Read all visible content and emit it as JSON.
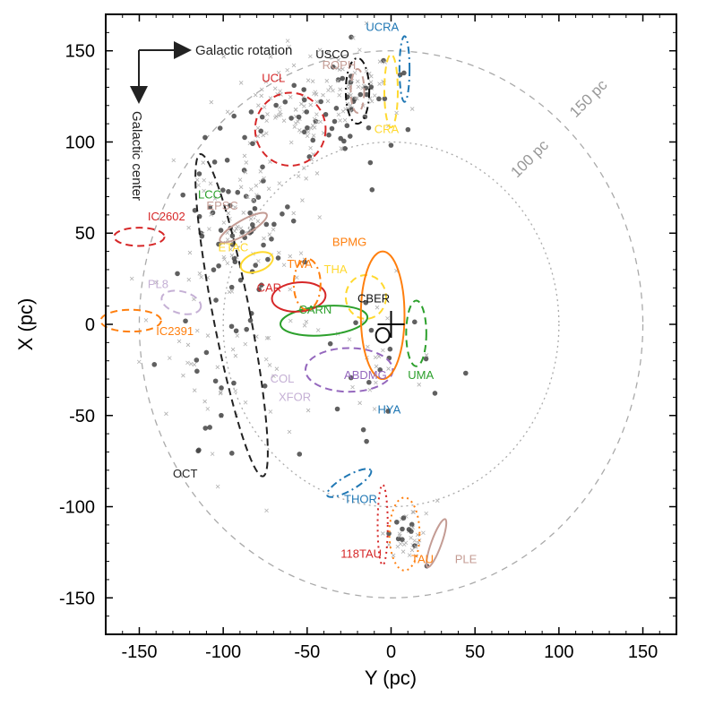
{
  "chart_data": {
    "type": "scatter",
    "title": "",
    "xlabel": "Y (pc)",
    "ylabel": "X (pc)",
    "xlim": [
      -170,
      170
    ],
    "ylim": [
      170,
      -170
    ],
    "xticks": [
      -150,
      -100,
      -50,
      0,
      50,
      100,
      150
    ],
    "yticks": [
      -150,
      -100,
      -50,
      0,
      50,
      100,
      150
    ],
    "xtick_labels": [
      "-150",
      "-100",
      "-50",
      "0",
      "50",
      "100",
      "150"
    ],
    "ytick_labels": [
      "-150",
      "-100",
      "-50",
      "0",
      "50",
      "100",
      "150"
    ],
    "annotations": {
      "rotation": "Galactic rotation",
      "center": "Galactic center"
    },
    "reference_circles": [
      {
        "radius": 100,
        "label": "100 pc",
        "label_pos": [
          75,
          80
        ],
        "style": "dotted",
        "color": "#aaaaaa"
      },
      {
        "radius": 150,
        "label": "150 pc",
        "label_pos": [
          110,
          113
        ],
        "style": "dashed",
        "color": "#aaaaaa"
      }
    ],
    "sun_marker": [
      0,
      0
    ],
    "associations": [
      {
        "name": "118TAU",
        "color": "#d62728",
        "style": "dotted",
        "cx": -5,
        "cy": -110,
        "rx": 3,
        "ry": 22,
        "angle": 0,
        "label_pos": [
          -30,
          -128
        ]
      },
      {
        "name": "TAU",
        "color": "#ff7f0e",
        "style": "dotted",
        "cx": 8,
        "cy": -115,
        "rx": 9,
        "ry": 20,
        "angle": 0,
        "label_pos": [
          12,
          -131
        ]
      },
      {
        "name": "PLE",
        "color": "#c49c94",
        "style": "solid",
        "cx": 27,
        "cy": -120,
        "rx": 3,
        "ry": 14,
        "angle": 20,
        "label_pos": [
          38,
          -131
        ]
      },
      {
        "name": "THOR",
        "color": "#1f77b4",
        "style": "dashdot",
        "cx": -25,
        "cy": -87,
        "rx": 15,
        "ry": 4,
        "angle": -30,
        "label_pos": [
          -28,
          -98
        ]
      },
      {
        "name": "OCT",
        "color": "#222222",
        "style": "dashed",
        "cx": -95,
        "cy": 5,
        "rx": 11,
        "ry": 90,
        "angle": -11,
        "label_pos": [
          -130,
          -84
        ]
      },
      {
        "name": "XFOR",
        "color": "#c5b0d5",
        "style": "dashed",
        "cx": -65,
        "cy": -42,
        "rx": 0,
        "ry": 0,
        "angle": 0,
        "label_pos": [
          -67,
          -42
        ]
      },
      {
        "name": "COL",
        "color": "#c5b0d5",
        "style": "dashed",
        "cx": -70,
        "cy": -32,
        "rx": 0,
        "ry": 0,
        "angle": 0,
        "label_pos": [
          -72,
          -32
        ]
      },
      {
        "name": "ABDMG",
        "color": "#9467bd",
        "style": "dashed",
        "cx": -25,
        "cy": -25,
        "rx": 26,
        "ry": 12,
        "angle": 0,
        "label_pos": [
          -28,
          -30
        ]
      },
      {
        "name": "HYA",
        "color": "#1f77b4",
        "style": "solid",
        "cx": -10,
        "cy": -42,
        "rx": 0,
        "ry": 0,
        "angle": 0,
        "label_pos": [
          -8,
          -49
        ]
      },
      {
        "name": "UMA",
        "color": "#2ca02c",
        "style": "dashed",
        "cx": 15,
        "cy": -5,
        "rx": 6,
        "ry": 18,
        "angle": 0,
        "label_pos": [
          10,
          -30
        ]
      },
      {
        "name": "CBER",
        "color": "#111111",
        "style": "solid",
        "cx": -5,
        "cy": -6,
        "rx": 4,
        "ry": 4,
        "angle": 0,
        "label_pos": [
          -20,
          12
        ]
      },
      {
        "name": "IC2391",
        "color": "#ff7f0e",
        "style": "dashed",
        "cx": -155,
        "cy": 2,
        "rx": 18,
        "ry": 6,
        "angle": 0,
        "label_pos": [
          -140,
          -6
        ]
      },
      {
        "name": "PL8",
        "color": "#c5b0d5",
        "style": "dashed",
        "cx": -125,
        "cy": 12,
        "rx": 12,
        "ry": 6,
        "angle": 15,
        "label_pos": [
          -145,
          20
        ]
      },
      {
        "name": "CARN",
        "color": "#2ca02c",
        "style": "solid",
        "cx": -40,
        "cy": 2,
        "rx": 26,
        "ry": 8,
        "angle": -5,
        "label_pos": [
          -55,
          6
        ]
      },
      {
        "name": "CAR",
        "color": "#d62728",
        "style": "solid",
        "cx": -55,
        "cy": 15,
        "rx": 16,
        "ry": 8,
        "angle": -5,
        "label_pos": [
          -80,
          18
        ]
      },
      {
        "name": "THA",
        "color": "#ffd92f",
        "style": "dashed",
        "cx": -15,
        "cy": 15,
        "rx": 12,
        "ry": 12,
        "angle": 0,
        "label_pos": [
          -40,
          28
        ]
      },
      {
        "name": "TWA",
        "color": "#ff7f0e",
        "style": "dashdot",
        "cx": -50,
        "cy": 22,
        "rx": 8,
        "ry": 14,
        "angle": 0,
        "label_pos": [
          -62,
          31
        ]
      },
      {
        "name": "BPMG",
        "color": "#ff7f0e",
        "style": "solid",
        "cx": -5,
        "cy": 5,
        "rx": 13,
        "ry": 35,
        "angle": 0,
        "label_pos": [
          -35,
          43
        ]
      },
      {
        "name": "ETAC",
        "color": "#ffd92f",
        "style": "solid",
        "cx": -80,
        "cy": 34,
        "rx": 10,
        "ry": 5,
        "angle": -20,
        "label_pos": [
          -103,
          40
        ]
      },
      {
        "name": "IC2602",
        "color": "#d62728",
        "style": "dashed",
        "cx": -150,
        "cy": 48,
        "rx": 15,
        "ry": 5,
        "angle": 0,
        "label_pos": [
          -145,
          57
        ]
      },
      {
        "name": "EPSC",
        "color": "#c49c94",
        "style": "solid",
        "cx": -88,
        "cy": 53,
        "rx": 16,
        "ry": 4,
        "angle": -30,
        "label_pos": [
          -110,
          63
        ]
      },
      {
        "name": "LCC",
        "color": "#2ca02c",
        "style": "dashed",
        "cx": -95,
        "cy": 65,
        "rx": 0,
        "ry": 0,
        "angle": 0,
        "label_pos": [
          -115,
          69
        ]
      },
      {
        "name": "UCL",
        "color": "#d62728",
        "style": "dashed",
        "cx": -60,
        "cy": 107,
        "rx": 21,
        "ry": 20,
        "angle": 0,
        "label_pos": [
          -77,
          133
        ]
      },
      {
        "name": "CRA",
        "color": "#ffd92f",
        "style": "dashed",
        "cx": 0,
        "cy": 128,
        "rx": 4,
        "ry": 20,
        "angle": 0,
        "label_pos": [
          -10,
          105
        ]
      },
      {
        "name": "ROPH",
        "color": "#c49c94",
        "style": "dashed",
        "cx": -20,
        "cy": 128,
        "rx": 4,
        "ry": 12,
        "angle": 0,
        "label_pos": [
          -41,
          140
        ]
      },
      {
        "name": "USCO",
        "color": "#111111",
        "style": "dashdot",
        "cx": -20,
        "cy": 128,
        "rx": 7,
        "ry": 18,
        "angle": 0,
        "label_pos": [
          -45,
          146
        ]
      },
      {
        "name": "UCRA",
        "color": "#1f77b4",
        "style": "dashdot",
        "cx": 8,
        "cy": 140,
        "rx": 3,
        "ry": 18,
        "angle": 0,
        "label_pos": [
          -15,
          161
        ]
      }
    ]
  }
}
